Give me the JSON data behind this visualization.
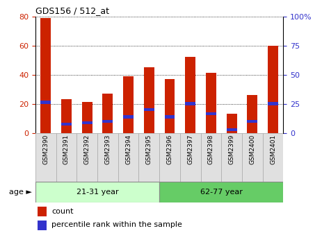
{
  "title": "GDS156 / 512_at",
  "samples": [
    "GSM2390",
    "GSM2391",
    "GSM2392",
    "GSM2393",
    "GSM2394",
    "GSM2395",
    "GSM2396",
    "GSM2397",
    "GSM2398",
    "GSM2399",
    "GSM2400",
    "GSM2401"
  ],
  "count_values": [
    79,
    23,
    21,
    27,
    39,
    45,
    37,
    52,
    41,
    13,
    26,
    60
  ],
  "blue_bottom": [
    20,
    5,
    6,
    7,
    10,
    15,
    10,
    19,
    12,
    1,
    7,
    19
  ],
  "blue_height": [
    2,
    2,
    2,
    2,
    2,
    2,
    2,
    2,
    2,
    2,
    2,
    2
  ],
  "bar_color": "#cc2200",
  "blue_color": "#3333cc",
  "ylim_left": [
    0,
    80
  ],
  "ylim_right": [
    0,
    100
  ],
  "yticks_left": [
    0,
    20,
    40,
    60,
    80
  ],
  "yticks_right": [
    0,
    25,
    50,
    75,
    100
  ],
  "yticklabels_right": [
    "0",
    "25",
    "50",
    "75",
    "100%"
  ],
  "grid_yticks": [
    20,
    40,
    60,
    80
  ],
  "age_groups": [
    {
      "label": "21-31 year",
      "start": 0,
      "end": 6,
      "color": "#ccffcc"
    },
    {
      "label": "62-77 year",
      "start": 6,
      "end": 12,
      "color": "#66cc66"
    }
  ],
  "age_label": "age",
  "legend_count_label": "count",
  "legend_percentile_label": "percentile rank within the sample",
  "bar_width": 0.5,
  "left_tick_color": "#cc2200",
  "right_tick_color": "#3333cc",
  "sample_bg_color": "#e0e0e0",
  "sample_border_color": "#aaaaaa"
}
